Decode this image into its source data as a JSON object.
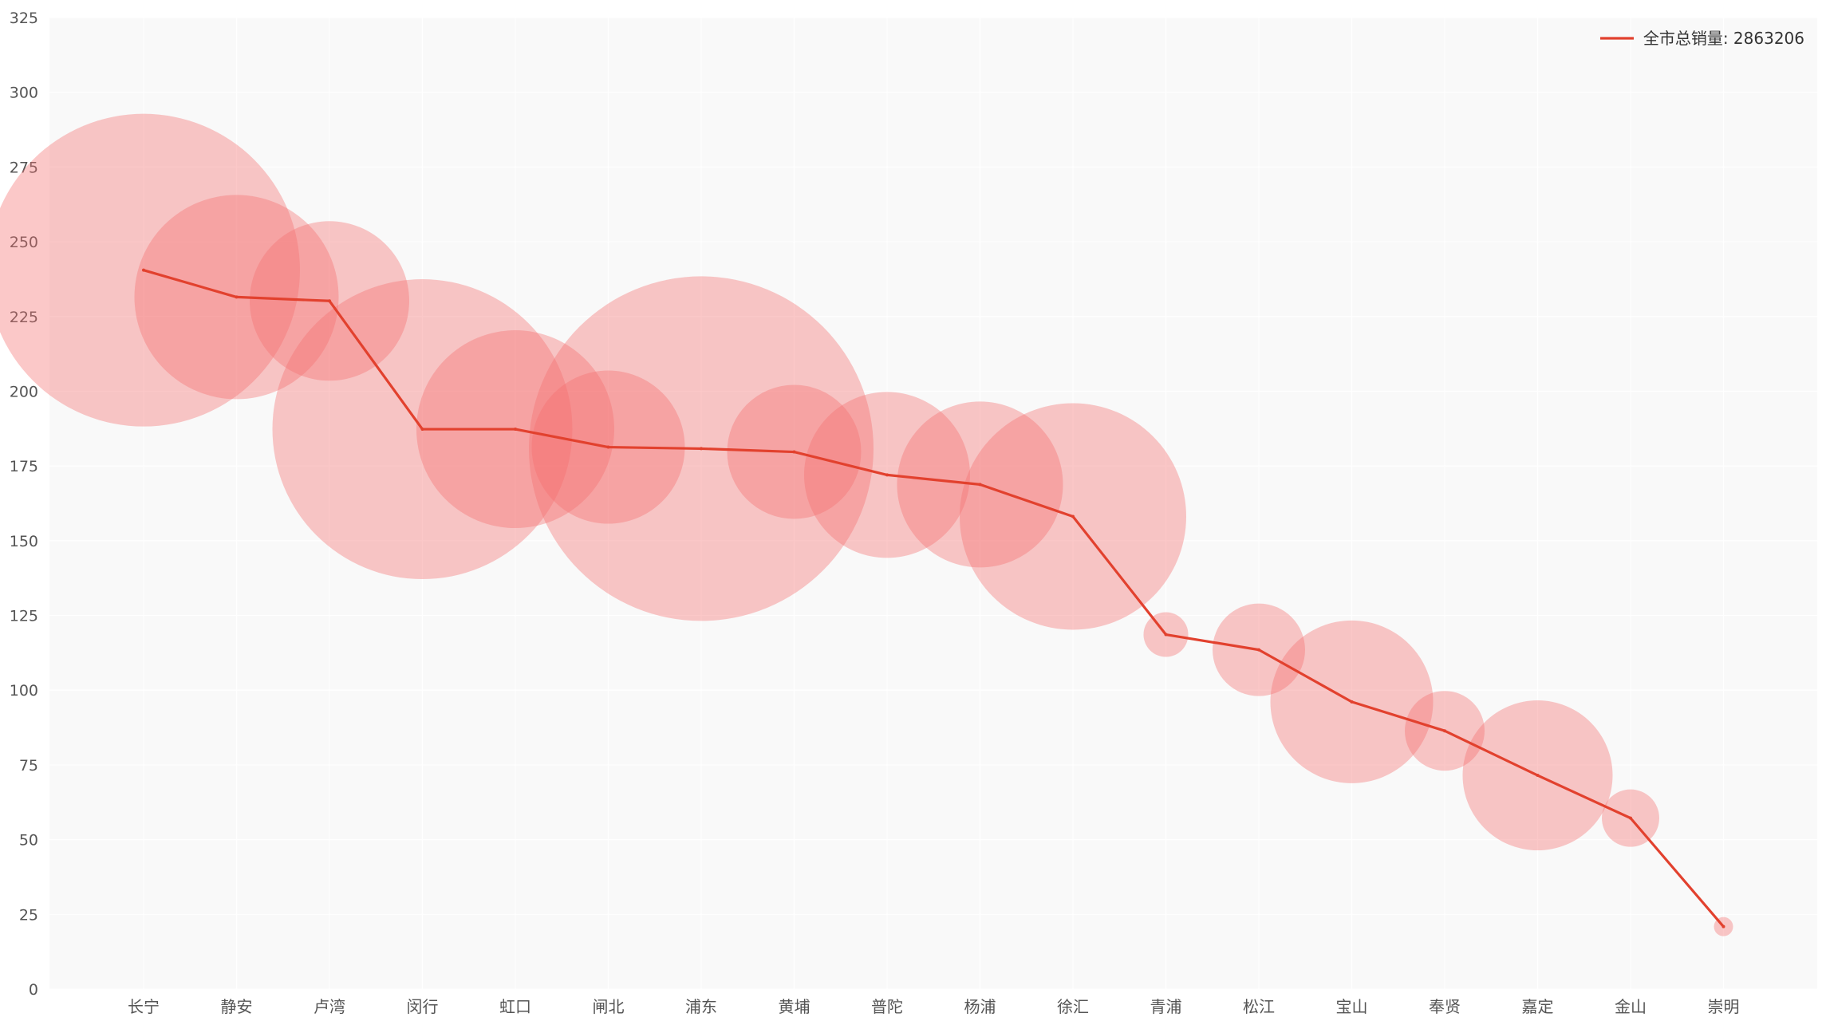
{
  "chart_data": {
    "type": "bubble-line",
    "title": "",
    "xlabel": "",
    "ylabel": "",
    "ylim": [
      0,
      325
    ],
    "yticks": [
      0,
      25,
      50,
      75,
      100,
      125,
      150,
      175,
      200,
      225,
      250,
      275,
      300,
      325
    ],
    "grid": true,
    "legend_position": "top-right",
    "categories": [
      "长宁",
      "静安",
      "卢湾",
      "闵行",
      "虹口",
      "闸北",
      "浦东",
      "黄埔",
      "普陀",
      "杨浦",
      "徐汇",
      "青浦",
      "松江",
      "宝山",
      "奉贤",
      "嘉定",
      "金山",
      "崇明"
    ],
    "series": [
      {
        "name": "全市总销量: 2863206",
        "type": "line",
        "values": [
          240.5,
          231.5,
          230.2,
          187.3,
          187.3,
          181.3,
          180.8,
          179.7,
          172.0,
          168.8,
          158.1,
          118.6,
          113.5,
          96.1,
          86.4,
          71.5,
          57.2,
          20.9
        ]
      },
      {
        "type": "bubble",
        "values": [
          240.5,
          231.5,
          230.2,
          187.3,
          187.3,
          181.3,
          180.8,
          179.7,
          172.0,
          168.8,
          158.1,
          118.6,
          113.5,
          96.1,
          86.4,
          71.5,
          57.2,
          20.9
        ],
        "relative_size": [
          196,
          128,
          100,
          188,
          124,
          96,
          216,
          84,
          104,
          104,
          142,
          28,
          58,
          102,
          50,
          94,
          36,
          12
        ]
      }
    ],
    "colors": {
      "line": "#e2412e",
      "bubble_fill": "#f46e6e",
      "bubble_opacity": 0.38,
      "plot_background": "#f9f9f9",
      "grid": "#ffffff",
      "axis_text": "#555555"
    }
  }
}
